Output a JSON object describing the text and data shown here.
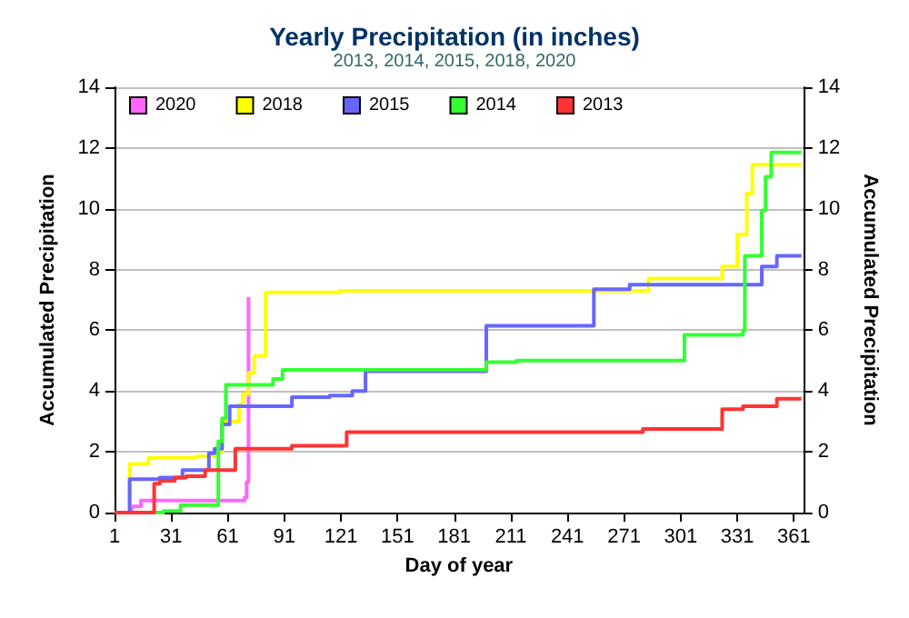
{
  "chart_data": {
    "type": "step",
    "title": "Yearly Precipitation (in inches)",
    "subtitle": "2013, 2014, 2015, 2018, 2020",
    "xlabel": "Day of year",
    "ylabel": "Accumulated Precipitation",
    "y2label": "Accumulated Precipitation",
    "xlim": [
      1,
      366
    ],
    "xticks": [
      1,
      31,
      61,
      91,
      121,
      151,
      181,
      211,
      241,
      271,
      301,
      331,
      361
    ],
    "ylim": [
      0,
      14
    ],
    "yticks": [
      0,
      2,
      4,
      6,
      8,
      10,
      12,
      14
    ],
    "y2lim": [
      0,
      14
    ],
    "y2ticks": [
      0,
      2,
      4,
      6,
      8,
      10,
      12,
      14
    ],
    "grid": "y",
    "legend": "top left",
    "marker": "none",
    "line_style": "solid",
    "series": [
      {
        "name": "2020",
        "color": "#ff66ff",
        "x": [
          1,
          10,
          15,
          70,
          71,
          72
        ],
        "values": [
          0,
          0.2,
          0.4,
          0.5,
          1.0,
          7.1
        ]
      },
      {
        "name": "2018",
        "color": "#ffff00",
        "x": [
          1,
          7,
          9,
          19,
          44,
          54,
          58,
          67,
          69,
          72,
          75,
          81,
          120,
          284,
          323,
          331,
          336,
          339,
          365
        ],
        "values": [
          0,
          0,
          1.6,
          1.8,
          1.85,
          2.0,
          3.0,
          3.55,
          3.9,
          4.6,
          5.15,
          7.25,
          7.3,
          7.7,
          8.1,
          9.15,
          10.5,
          11.45,
          11.45
        ]
      },
      {
        "name": "2015",
        "color": "#6666ff",
        "x": [
          1,
          9,
          25,
          37,
          51,
          54,
          58,
          62,
          95,
          115,
          127,
          134,
          198,
          255,
          274,
          344,
          352,
          365
        ],
        "values": [
          0,
          1.1,
          1.15,
          1.4,
          1.95,
          2.1,
          2.9,
          3.5,
          3.8,
          3.85,
          4.0,
          4.65,
          6.15,
          7.35,
          7.5,
          8.1,
          8.45,
          8.45
        ]
      },
      {
        "name": "2014",
        "color": "#33ff33",
        "x": [
          1,
          27,
          36,
          56,
          58,
          60,
          85,
          90,
          198,
          214,
          303,
          334,
          335,
          344,
          346,
          349,
          365
        ],
        "values": [
          0,
          0.05,
          0.25,
          2.35,
          3.1,
          4.2,
          4.4,
          4.7,
          4.95,
          5.0,
          5.85,
          6.0,
          8.45,
          9.95,
          11.05,
          11.85,
          11.85
        ]
      },
      {
        "name": "2013",
        "color": "#ff3333",
        "x": [
          1,
          22,
          25,
          33,
          39,
          49,
          65,
          95,
          124,
          281,
          323,
          334,
          352,
          365
        ],
        "values": [
          0,
          0.95,
          1.05,
          1.15,
          1.2,
          1.4,
          2.1,
          2.2,
          2.65,
          2.75,
          3.4,
          3.5,
          3.75,
          3.75
        ]
      }
    ]
  }
}
